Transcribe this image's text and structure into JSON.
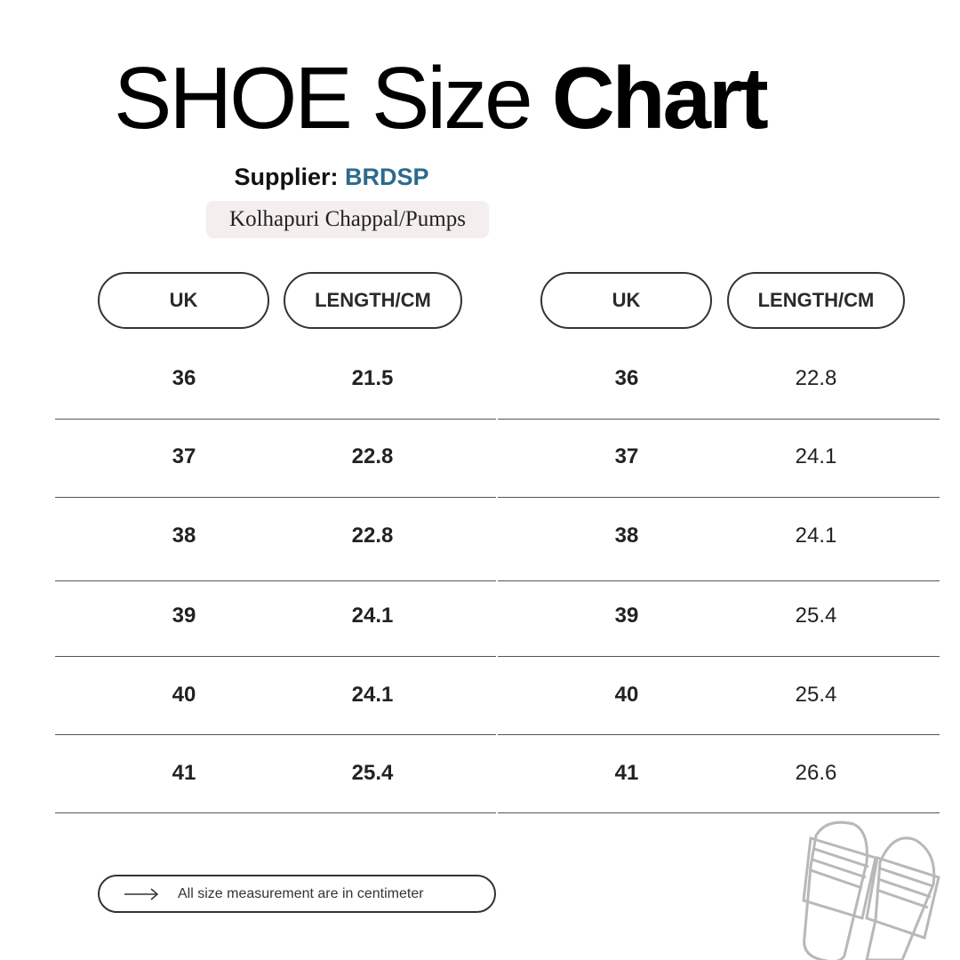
{
  "title": {
    "light": "SHOE Size",
    "bold": "Chart"
  },
  "supplier": {
    "label": "Supplier:",
    "name": "BRDSP",
    "brand_color": "#2b6a8e"
  },
  "product_type": "Kolhapuri Chappal/Pumps",
  "tables": [
    {
      "headers": [
        "UK",
        "LENGTH/CM"
      ],
      "rows": [
        [
          "36",
          "21.5"
        ],
        [
          "37",
          "22.8"
        ],
        [
          "38",
          "22.8"
        ],
        [
          "39",
          "24.1"
        ],
        [
          "40",
          "24.1"
        ],
        [
          "41",
          "25.4"
        ]
      ]
    },
    {
      "headers": [
        "UK",
        "LENGTH/CM"
      ],
      "rows": [
        [
          "36",
          "22.8"
        ],
        [
          "37",
          "24.1"
        ],
        [
          "38",
          "24.1"
        ],
        [
          "39",
          "25.4"
        ],
        [
          "40",
          "25.4"
        ],
        [
          "41",
          "26.6"
        ]
      ]
    }
  ],
  "footer": {
    "icon": "arrow-right-icon",
    "note": "All size measurement are in centimeter"
  },
  "illustration": "slippers-icon"
}
